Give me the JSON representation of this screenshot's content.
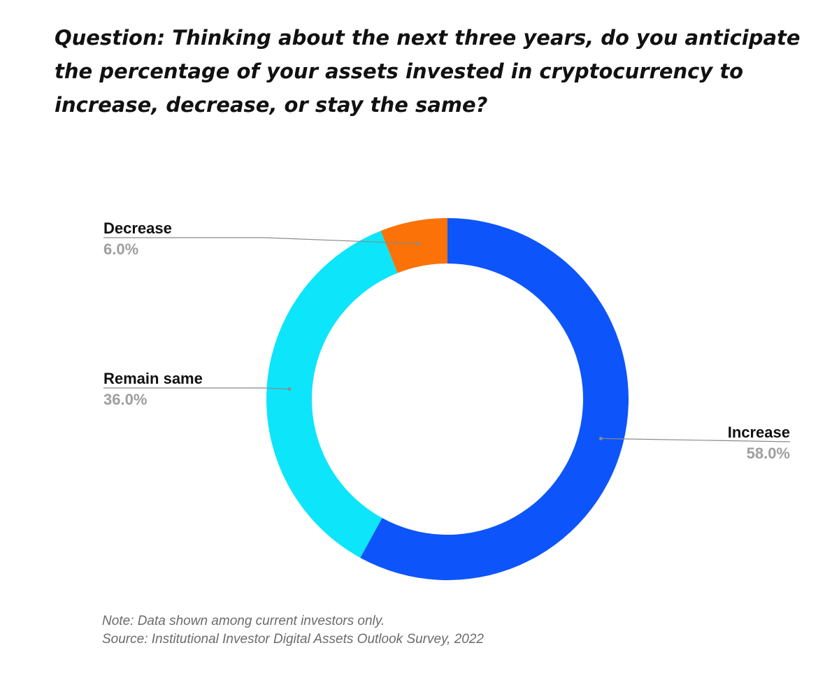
{
  "question": "Question: Thinking about the next three years, do you anticipate the percentage of your assets invested in cryptocurrency to increase, decrease, or stay the same?",
  "footer": {
    "note": "Note: Data shown among current investors only.",
    "source": "Source: Institutional Investor Digital Assets Outlook Survey, 2022"
  },
  "chart_data": {
    "type": "pie",
    "subtype": "donut",
    "start": "12 o'clock",
    "direction": "clockwise",
    "slices": [
      {
        "name": "Increase",
        "value": 58.0,
        "label": "58.0%",
        "color": "#0d55fb",
        "label_side": "right"
      },
      {
        "name": "Remain same",
        "value": 36.0,
        "label": "36.0%",
        "color": "#0de5fb",
        "label_side": "left"
      },
      {
        "name": "Decrease",
        "value": 6.0,
        "label": "6.0%",
        "color": "#fb7208",
        "label_side": "left"
      }
    ],
    "leader_line_color": "#8a8a8a"
  }
}
